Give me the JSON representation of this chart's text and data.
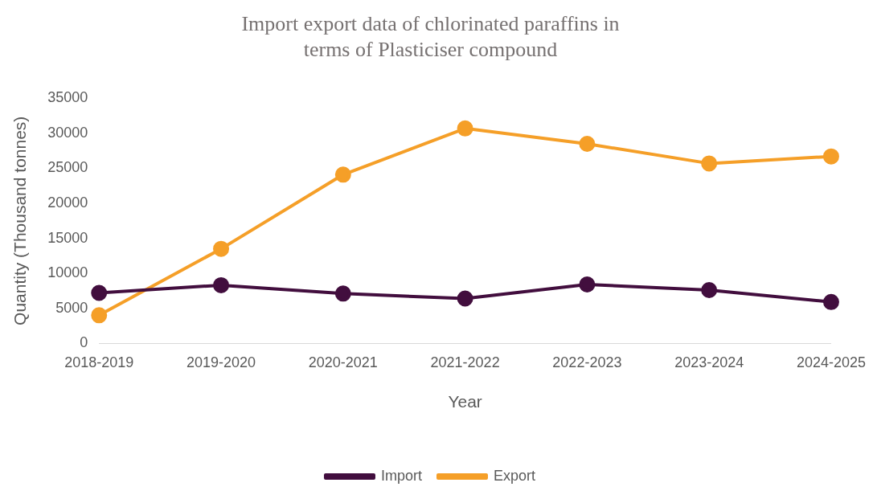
{
  "chart_data": {
    "type": "line",
    "title": "Import export data of chlorinated paraffins in terms of Plasticiser compound",
    "xlabel": "Year",
    "ylabel": "Quantity (Thousand tonnes)",
    "categories": [
      "2018-2019",
      "2019-2020",
      "2020-2021",
      "2021-2022",
      "2022-2023",
      "2023-2024",
      "2024-2025"
    ],
    "series": [
      {
        "name": "Import",
        "color": "#420e3e",
        "values": [
          7200,
          8300,
          7100,
          6400,
          8400,
          7600,
          5900
        ]
      },
      {
        "name": "Export",
        "color": "#f59f28",
        "values": [
          4000,
          13500,
          24100,
          30700,
          28500,
          25700,
          26700
        ]
      }
    ],
    "ylim": [
      0,
      35000
    ],
    "yticks": [
      0,
      5000,
      10000,
      15000,
      20000,
      25000,
      30000,
      35000
    ],
    "grid": false,
    "legend": "bottom",
    "marker": "circle",
    "line_style": "solid"
  }
}
